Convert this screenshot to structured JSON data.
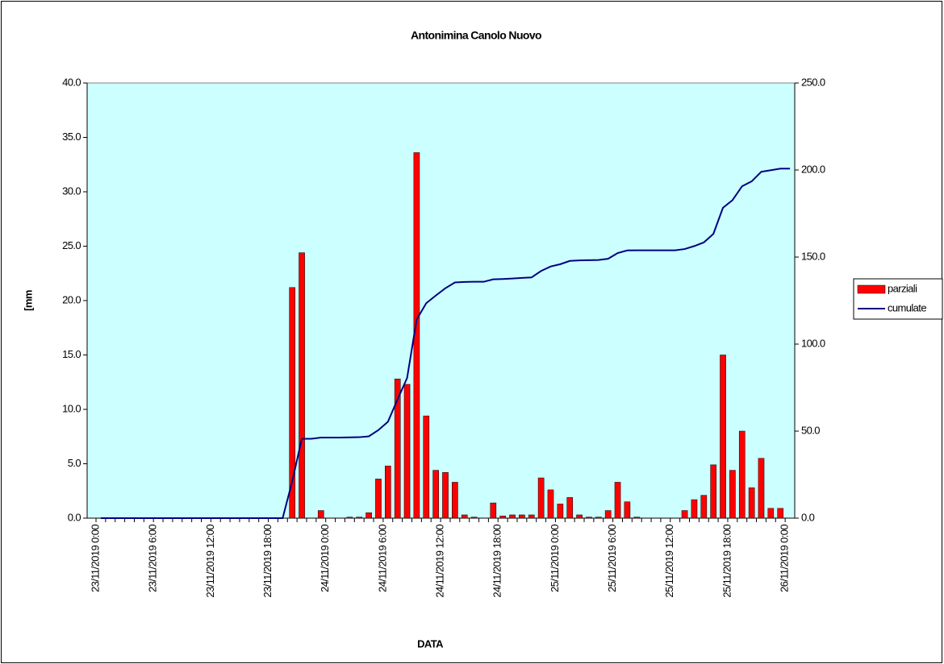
{
  "chart_data": {
    "type": "bar_line",
    "title": "Antonimina Canolo Nuovo",
    "x_label": "DATA",
    "y_label": "[mm",
    "categories": [
      "23/11/2019 0:00",
      null,
      null,
      null,
      null,
      null,
      "23/11/2019 6:00",
      null,
      null,
      null,
      null,
      null,
      "23/11/2019 12:00",
      null,
      null,
      null,
      null,
      null,
      "23/11/2019 18:00",
      null,
      null,
      null,
      null,
      null,
      "24/11/2019 0:00",
      null,
      null,
      null,
      null,
      null,
      "24/11/2019 6:00",
      null,
      null,
      null,
      null,
      null,
      "24/11/2019 12:00",
      null,
      null,
      null,
      null,
      null,
      "24/11/2019 18:00",
      null,
      null,
      null,
      null,
      null,
      "25/11/2019 0:00",
      null,
      null,
      null,
      null,
      null,
      "25/11/2019 6:00",
      null,
      null,
      null,
      null,
      null,
      "25/11/2019 12:00",
      null,
      null,
      null,
      null,
      null,
      "25/11/2019 18:00",
      null,
      null,
      null,
      null,
      null,
      "26/11/2019 0:00"
    ],
    "series": [
      {
        "name": "parziali",
        "type": "bar",
        "color": "#ff0000",
        "values": [
          0,
          0,
          0,
          0,
          0,
          0,
          0,
          0,
          0,
          0,
          0,
          0,
          0,
          0,
          0,
          0,
          0,
          0,
          0,
          0,
          21.2,
          24.4,
          0,
          0.7,
          0,
          0,
          0.1,
          0.1,
          0.5,
          3.6,
          4.8,
          12.8,
          12.3,
          33.6,
          9.4,
          4.4,
          4.2,
          3.3,
          0.3,
          0.1,
          0,
          1.4,
          0.2,
          0.3,
          0.3,
          0.3,
          3.7,
          2.6,
          1.3,
          1.9,
          0.3,
          0.1,
          0.1,
          0.7,
          3.3,
          1.5,
          0.1,
          0,
          0,
          0,
          0,
          0.7,
          1.7,
          2.1,
          4.9,
          15.0,
          4.4,
          8.0,
          2.8,
          5.5,
          0.9,
          0.9,
          0
        ]
      },
      {
        "name": "cumulate",
        "type": "line",
        "axis": "y2",
        "color": "#000080",
        "values": [
          0,
          0,
          0,
          0,
          0,
          0,
          0,
          0,
          0,
          0,
          0,
          0,
          0,
          0,
          0,
          0,
          0,
          0,
          0,
          0,
          21.2,
          45.6,
          45.6,
          46.3,
          46.3,
          46.3,
          46.4,
          46.5,
          47.0,
          50.6,
          55.4,
          68.2,
          80.5,
          114.1,
          123.5,
          127.9,
          132.1,
          135.4,
          135.7,
          135.8,
          135.8,
          137.2,
          137.4,
          137.7,
          138.0,
          138.3,
          142.0,
          144.6,
          145.9,
          147.8,
          148.1,
          148.2,
          148.3,
          149.0,
          152.3,
          153.8,
          153.9,
          153.9,
          153.9,
          153.9,
          153.9,
          154.6,
          156.3,
          158.4,
          163.3,
          178.3,
          182.7,
          190.7,
          193.5,
          199.0,
          199.9,
          200.8,
          200.8
        ]
      }
    ],
    "ylim": [
      0,
      40
    ],
    "yticks": [
      {
        "value": 0,
        "label": "0.0"
      },
      {
        "value": 5,
        "label": "5.0"
      },
      {
        "value": 10,
        "label": "10.0"
      },
      {
        "value": 15,
        "label": "15.0"
      },
      {
        "value": 20,
        "label": "20.0"
      },
      {
        "value": 25,
        "label": "25.0"
      },
      {
        "value": 30,
        "label": "30.0"
      },
      {
        "value": 35,
        "label": "35.0"
      },
      {
        "value": 40,
        "label": "40.0"
      }
    ],
    "y2lim": [
      0,
      250
    ],
    "y2ticks": [
      {
        "value": 0,
        "label": "0.0"
      },
      {
        "value": 50,
        "label": "50.0"
      },
      {
        "value": 100,
        "label": "100.0"
      },
      {
        "value": 150,
        "label": "150.0"
      },
      {
        "value": 200,
        "label": "200.0"
      },
      {
        "value": 250,
        "label": "250.0"
      }
    ],
    "plot_background": "#ccffff",
    "legend": "right"
  }
}
